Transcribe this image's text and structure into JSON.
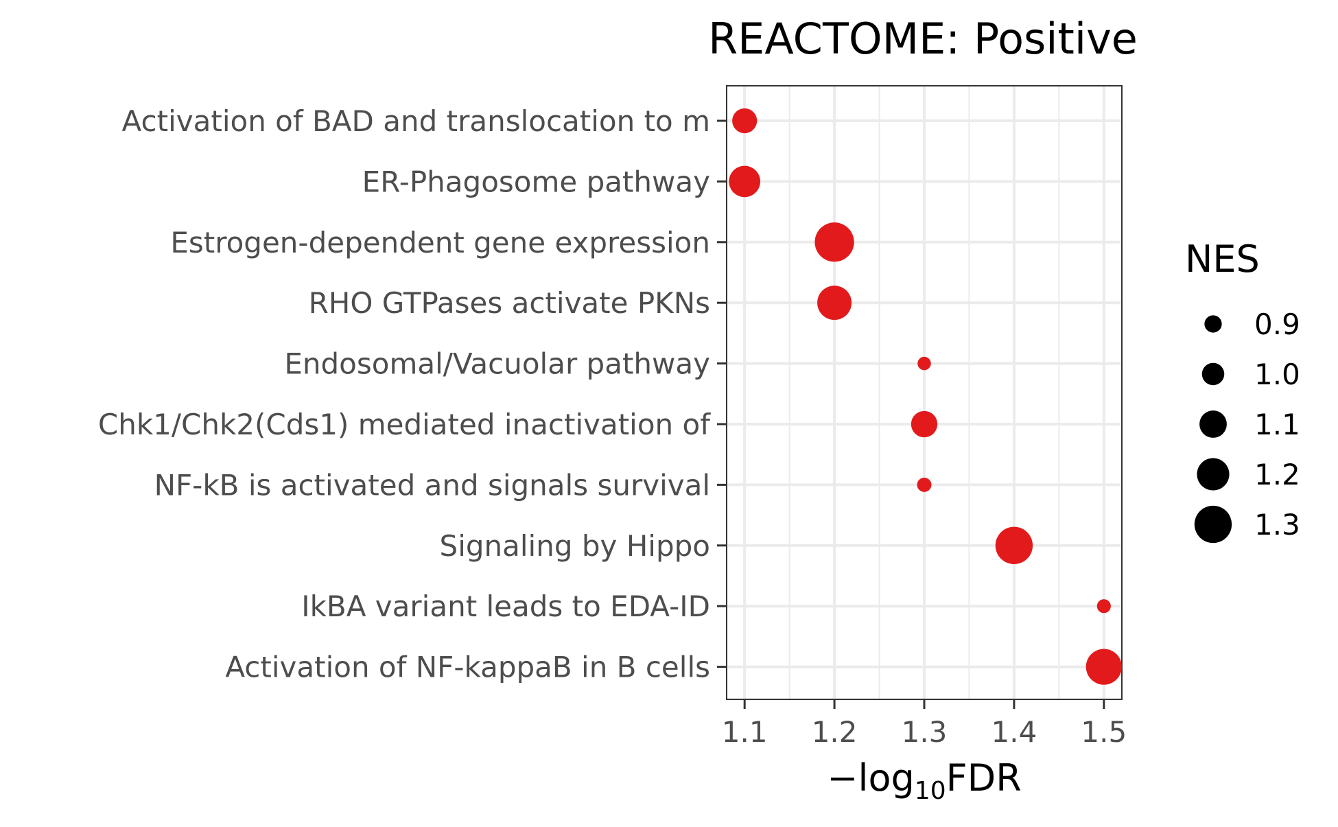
{
  "chart_data": {
    "type": "scatter",
    "title": "REACTOME: Positive",
    "xlabel_prefix": "−log",
    "xlabel_sub": "10",
    "xlabel_suffix": "FDR",
    "xlim": [
      1.08,
      1.52
    ],
    "xticks": [
      1.1,
      1.2,
      1.3,
      1.4,
      1.5
    ],
    "xtick_labels": [
      "1.1",
      "1.2",
      "1.3",
      "1.4",
      "1.5"
    ],
    "categories": [
      "Activation of BAD and translocation to m",
      "ER-Phagosome pathway",
      "Estrogen-dependent gene expression",
      "RHO GTPases activate PKNs",
      "Endosomal/Vacuolar pathway",
      "Chk1/Chk2(Cds1) mediated inactivation of",
      "NF-kB is activated and signals survival",
      "Signaling by Hippo",
      "IkBA variant leads to EDA-ID",
      "Activation of NF-kappaB in B cells"
    ],
    "points": [
      {
        "y": "Activation of BAD and translocation to m",
        "x": 1.1,
        "nes": 1.05
      },
      {
        "y": "ER-Phagosome pathway",
        "x": 1.1,
        "nes": 1.18
      },
      {
        "y": "Estrogen-dependent gene expression",
        "x": 1.2,
        "nes": 1.34
      },
      {
        "y": "RHO GTPases activate PKNs",
        "x": 1.2,
        "nes": 1.24
      },
      {
        "y": "Endosomal/Vacuolar pathway",
        "x": 1.3,
        "nes": 0.82
      },
      {
        "y": "Chk1/Chk2(Cds1) mediated inactivation of",
        "x": 1.3,
        "nes": 1.08
      },
      {
        "y": "NF-kB is activated and signals survival",
        "x": 1.3,
        "nes": 0.84
      },
      {
        "y": "Signaling by Hippo",
        "x": 1.4,
        "nes": 1.3
      },
      {
        "y": "IkBA variant leads to EDA-ID",
        "x": 1.5,
        "nes": 0.83
      },
      {
        "y": "Activation of NF-kappaB in B cells",
        "x": 1.5,
        "nes": 1.27
      }
    ],
    "size_legend": {
      "title": "NES",
      "values": [
        0.9,
        1.0,
        1.1,
        1.2,
        1.3
      ],
      "labels": [
        "0.9",
        "1.0",
        "1.1",
        "1.2",
        "1.3"
      ]
    },
    "point_color": "#e31a1c",
    "legend_point_color": "#000000",
    "grid": true,
    "legend_position": "right"
  }
}
